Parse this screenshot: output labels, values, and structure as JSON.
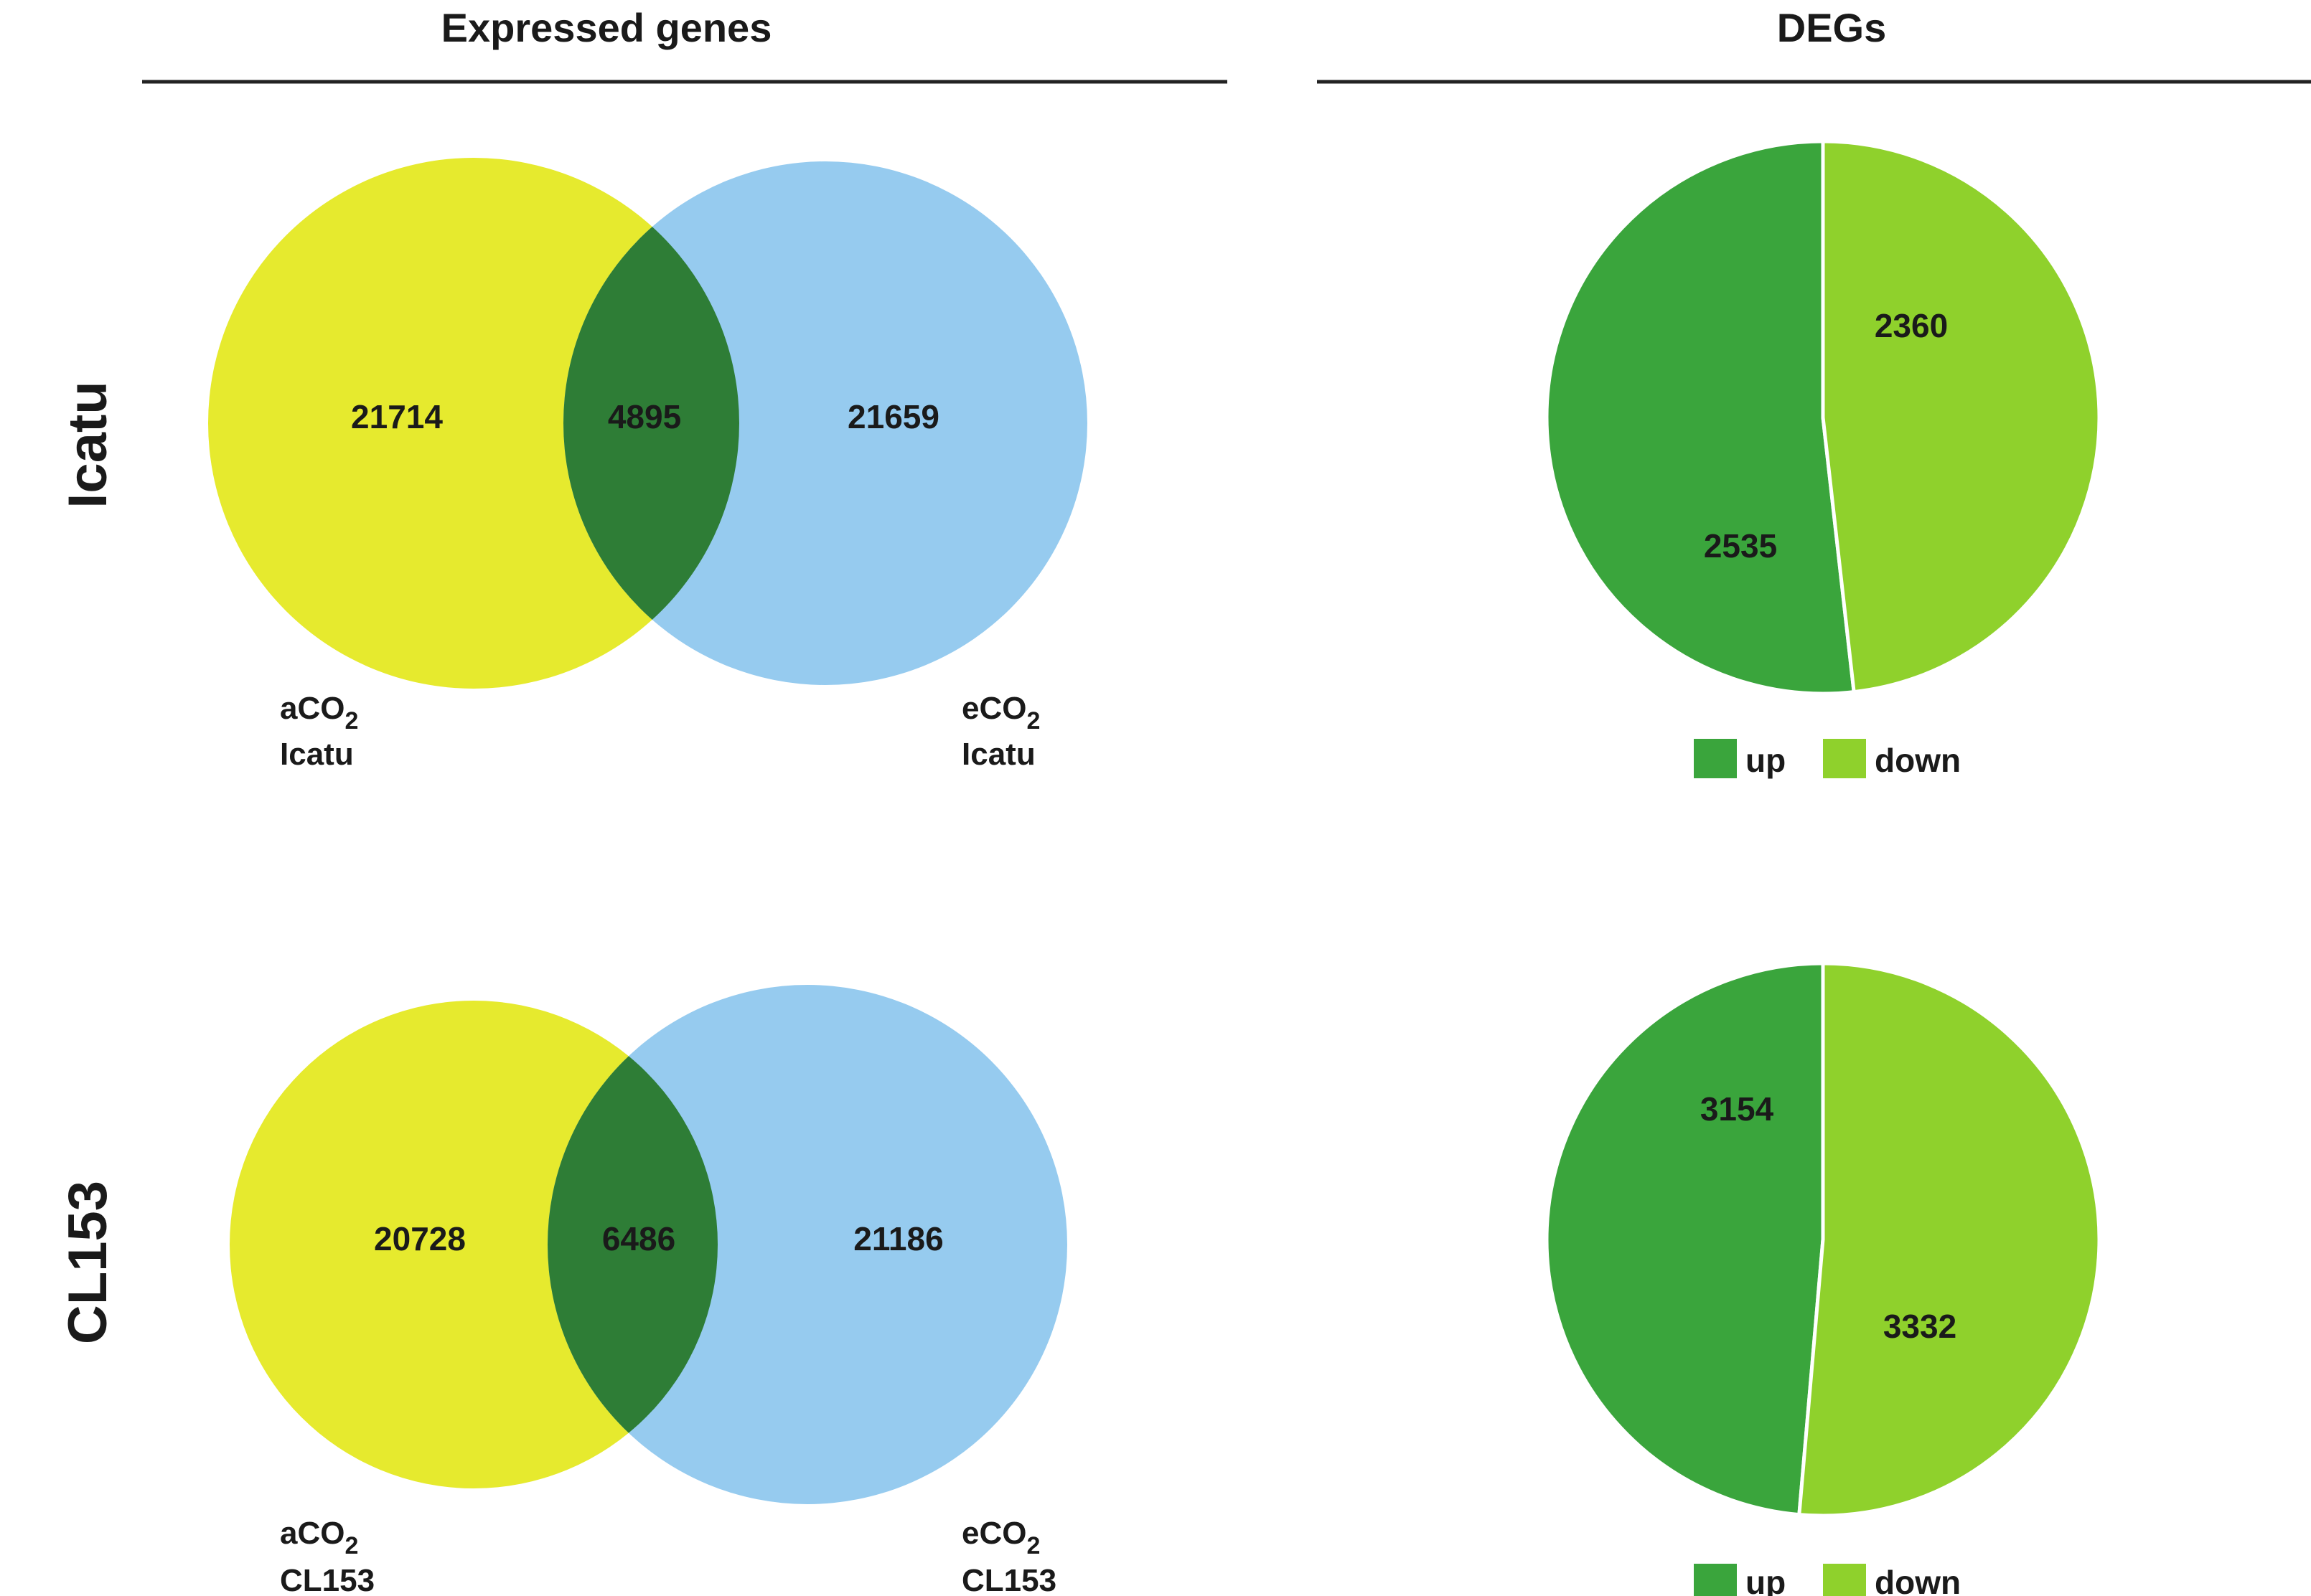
{
  "headers": {
    "left": "Expressed genes",
    "right": "DEGs"
  },
  "chart_data": [
    {
      "type": "venn",
      "row_label": "Icatu",
      "sets": [
        {
          "name": "aCO",
          "subscript": "2",
          "sub": "Icatu",
          "color": "#e6ea2e"
        },
        {
          "name": "eCO",
          "subscript": "2",
          "sub": "Icatu",
          "color": "#96cbef"
        }
      ],
      "values": {
        "only_a": "21714",
        "both": "4895",
        "only_b": "21659"
      },
      "overlap_color": "#2e7d36"
    },
    {
      "type": "pie",
      "row_label": "Icatu",
      "slices": [
        {
          "label": "up",
          "value": 2535,
          "color": "#3aa53c"
        },
        {
          "label": "down",
          "value": 2360,
          "color": "#8fd12c"
        }
      ],
      "legend": [
        "up",
        "down"
      ]
    },
    {
      "type": "venn",
      "row_label": "CL153",
      "sets": [
        {
          "name": "aCO",
          "subscript": "2",
          "sub": "CL153",
          "color": "#e6ea2e"
        },
        {
          "name": "eCO",
          "subscript": "2",
          "sub": "CL153",
          "color": "#96cbef"
        }
      ],
      "values": {
        "only_a": "20728",
        "both": "6486",
        "only_b": "21186"
      },
      "overlap_color": "#2e7d36"
    },
    {
      "type": "pie",
      "row_label": "CL153",
      "slices": [
        {
          "label": "up",
          "value": 3154,
          "color": "#3aa53c"
        },
        {
          "label": "down",
          "value": 3332,
          "color": "#8fd12c"
        }
      ],
      "legend": [
        "up",
        "down"
      ]
    }
  ]
}
